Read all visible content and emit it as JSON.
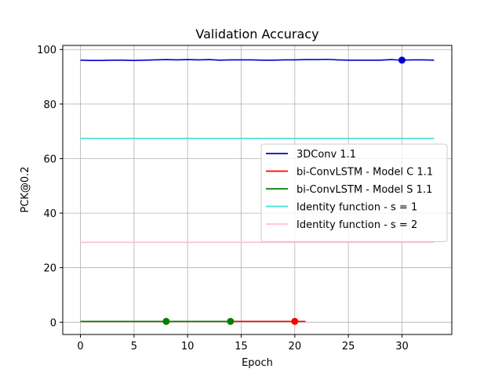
{
  "chart_data": {
    "type": "line",
    "title": "Validation Accuracy",
    "xlabel": "Epoch",
    "ylabel": "PCK@0.2",
    "xlim": [
      -1.65,
      34.65
    ],
    "ylim": [
      -4.5,
      101.5
    ],
    "xticks": [
      0,
      5,
      10,
      15,
      20,
      25,
      30
    ],
    "yticks": [
      0,
      20,
      40,
      60,
      80,
      100
    ],
    "grid": true,
    "legend_position": "center-right",
    "series": [
      {
        "name": "3DConv 1.1",
        "color": "#0000cd",
        "x": [
          0,
          1,
          2,
          3,
          4,
          5,
          6,
          7,
          8,
          9,
          10,
          11,
          12,
          13,
          14,
          15,
          16,
          17,
          18,
          19,
          20,
          21,
          22,
          23,
          24,
          25,
          26,
          27,
          28,
          29,
          30,
          31,
          32,
          33
        ],
        "y": [
          96.1,
          96.0,
          96.0,
          96.1,
          96.1,
          96.0,
          96.1,
          96.2,
          96.3,
          96.2,
          96.3,
          96.2,
          96.3,
          96.1,
          96.2,
          96.2,
          96.2,
          96.1,
          96.1,
          96.2,
          96.2,
          96.3,
          96.3,
          96.4,
          96.2,
          96.1,
          96.1,
          96.1,
          96.1,
          96.3,
          96.1,
          96.2,
          96.2,
          96.1
        ],
        "marker": {
          "x": 30,
          "y": 96.1
        }
      },
      {
        "name": "bi-ConvLSTM - Model C 1.1",
        "color": "#ff0000",
        "x": [
          0,
          1,
          2,
          3,
          4,
          5,
          6,
          7,
          8,
          9,
          10,
          11,
          12,
          13,
          14,
          15,
          16,
          17,
          18,
          19,
          20,
          21
        ],
        "y": [
          0.3,
          0.3,
          0.3,
          0.3,
          0.3,
          0.3,
          0.3,
          0.3,
          0.3,
          0.3,
          0.3,
          0.3,
          0.3,
          0.3,
          0.3,
          0.3,
          0.3,
          0.3,
          0.3,
          0.3,
          0.3,
          0.3
        ],
        "marker": {
          "x": 20,
          "y": 0.3
        }
      },
      {
        "name": "bi-ConvLSTM - Model S 1.1",
        "color": "#008000",
        "x": [
          0,
          1,
          2,
          3,
          4,
          5,
          6,
          7,
          8,
          9,
          10,
          11,
          12,
          13,
          14
        ],
        "y": [
          0.3,
          0.3,
          0.3,
          0.3,
          0.3,
          0.3,
          0.3,
          0.3,
          0.3,
          0.3,
          0.3,
          0.3,
          0.3,
          0.3,
          0.3
        ],
        "markers": [
          {
            "x": 8,
            "y": 0.3
          },
          {
            "x": 14,
            "y": 0.3
          }
        ]
      },
      {
        "name": "Identity function - s = 1",
        "color": "#40e0d0",
        "x": [
          0,
          33
        ],
        "y": [
          67.4,
          67.4
        ]
      },
      {
        "name": "Identity function - s = 2",
        "color": "#ffc0cb",
        "x": [
          0,
          33
        ],
        "y": [
          29.3,
          29.3
        ]
      }
    ]
  }
}
